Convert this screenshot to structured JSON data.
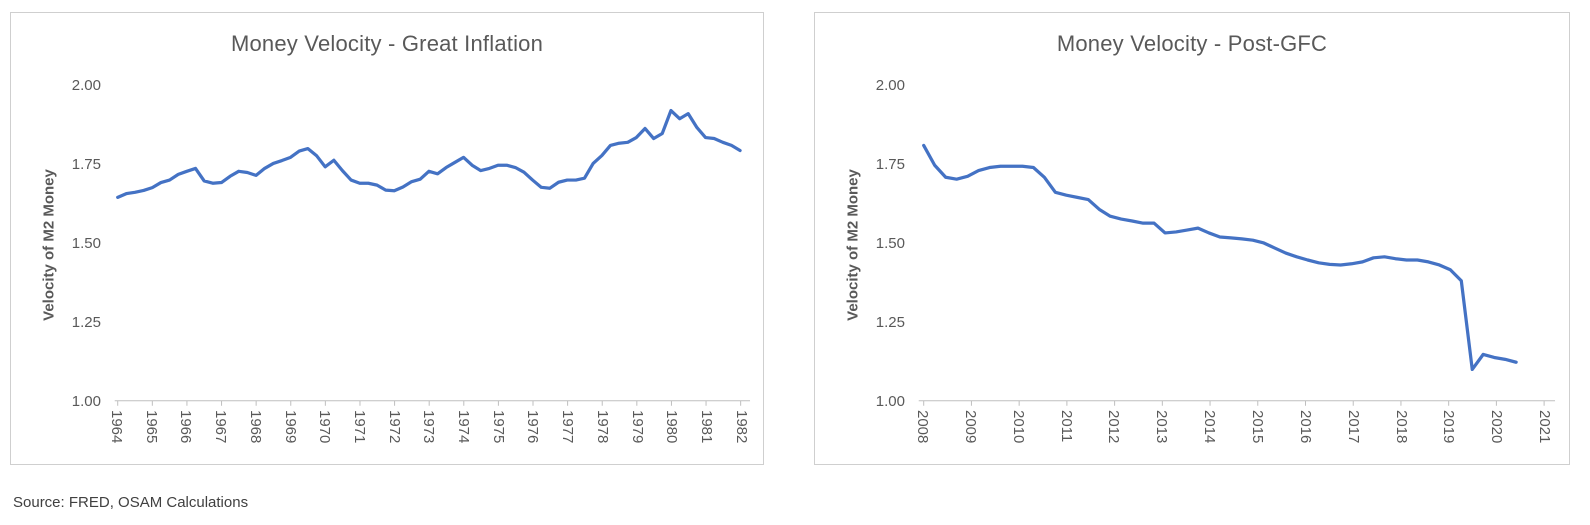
{
  "source_note": "Source: FRED, OSAM Calculations",
  "colors": {
    "line": "#4472C4",
    "axis": "#BFBFBF",
    "text": "#595959",
    "panel_border": "#CFCFCF",
    "source_text": "#404040"
  },
  "chart_data": [
    {
      "type": "line",
      "title": "Money Velocity - Great Inflation",
      "xlabel": "",
      "ylabel": "Velocity of M2 Money",
      "ylim": [
        1.0,
        2.0
      ],
      "y_tick_labels": [
        "2.00",
        "1.75",
        "1.50",
        "1.25",
        "1.00"
      ],
      "x_tick_labels": [
        "1964",
        "1965",
        "1966",
        "1967",
        "1968",
        "1969",
        "1970",
        "1971",
        "1972",
        "1973",
        "1974",
        "1975",
        "1976",
        "1977",
        "1978",
        "1979",
        "1980",
        "1981",
        "1982"
      ],
      "frequency": "quarterly",
      "x_range": "1964Q1-1982Q1",
      "grid": false,
      "legend": "none",
      "line_color": "#4472C4",
      "series": [
        {
          "name": "Velocity of M2 Money",
          "values": [
            1.645,
            1.657,
            1.661,
            1.667,
            1.676,
            1.692,
            1.7,
            1.718,
            1.728,
            1.737,
            1.697,
            1.69,
            1.692,
            1.712,
            1.728,
            1.724,
            1.715,
            1.737,
            1.753,
            1.762,
            1.772,
            1.792,
            1.8,
            1.778,
            1.742,
            1.763,
            1.73,
            1.7,
            1.69,
            1.69,
            1.684,
            1.668,
            1.666,
            1.678,
            1.695,
            1.703,
            1.728,
            1.72,
            1.74,
            1.756,
            1.772,
            1.747,
            1.73,
            1.737,
            1.747,
            1.747,
            1.74,
            1.725,
            1.7,
            1.677,
            1.674,
            1.693,
            1.7,
            1.7,
            1.706,
            1.753,
            1.778,
            1.81,
            1.817,
            1.82,
            1.835,
            1.864,
            1.832,
            1.848,
            1.921,
            1.895,
            1.911,
            1.867,
            1.835,
            1.832,
            1.82,
            1.81,
            1.794
          ]
        }
      ]
    },
    {
      "type": "line",
      "title": "Money Velocity - Post-GFC",
      "xlabel": "",
      "ylabel": "Velocity of M2 Money",
      "ylim": [
        1.0,
        2.0
      ],
      "y_tick_labels": [
        "2.00",
        "1.75",
        "1.50",
        "1.25",
        "1.00"
      ],
      "x_tick_labels": [
        "2008",
        "2009",
        "2010",
        "2011",
        "2012",
        "2013",
        "2014",
        "2015",
        "2016",
        "2017",
        "2018",
        "2019",
        "2020",
        "2021"
      ],
      "frequency": "quarterly",
      "x_range": "2008Q1-2021Q3",
      "grid": false,
      "legend": "none",
      "line_color": "#4472C4",
      "series": [
        {
          "name": "Velocity of M2 Money",
          "values": [
            1.81,
            1.747,
            1.709,
            1.703,
            1.712,
            1.73,
            1.74,
            1.744,
            1.744,
            1.744,
            1.74,
            1.709,
            1.661,
            1.652,
            1.645,
            1.638,
            1.607,
            1.585,
            1.576,
            1.57,
            1.563,
            1.563,
            1.532,
            1.535,
            1.541,
            1.547,
            1.532,
            1.519,
            1.516,
            1.513,
            1.509,
            1.5,
            1.484,
            1.468,
            1.456,
            1.446,
            1.437,
            1.432,
            1.43,
            1.434,
            1.44,
            1.453,
            1.456,
            1.45,
            1.446,
            1.446,
            1.44,
            1.43,
            1.415,
            1.38,
            1.098,
            1.146,
            1.136,
            1.13,
            1.121
          ]
        }
      ]
    }
  ]
}
